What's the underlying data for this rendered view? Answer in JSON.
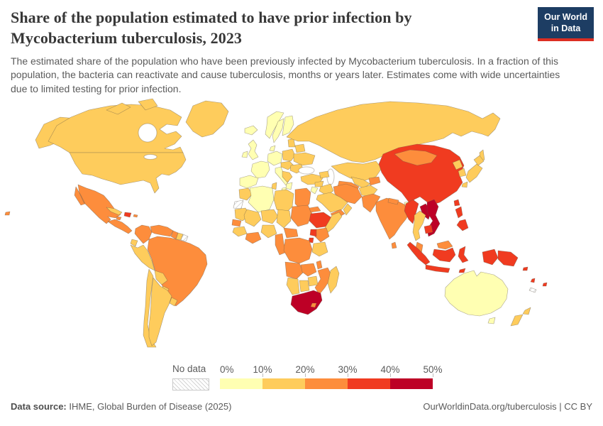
{
  "header": {
    "title": "Share of the population estimated to have prior infection by Mycobacterium tuberculosis, 2023",
    "subtitle": "The estimated share of the population who have been previously infected by Mycobacterium tuberculosis. In a fraction of this population, the bacteria can reactivate and cause tuberculosis, months or years later. Estimates come with wide uncertainties due to limited testing for prior infection.",
    "logo_line1": "Our World",
    "logo_line2": "in Data",
    "logo_bg": "#1d3d63",
    "logo_accent": "#dc2e22"
  },
  "legend": {
    "no_data_label": "No data",
    "ticks": [
      "0%",
      "10%",
      "20%",
      "30%",
      "40%",
      "50%"
    ]
  },
  "footer": {
    "source_label": "Data source:",
    "source_value": " IHME, Global Burden of Disease (2025)",
    "right_text": "OurWorldinData.org/tuberculosis | CC BY"
  },
  "chart_data": {
    "type": "choropleth_map",
    "title": "Share of the population estimated to have prior infection by Mycobacterium tuberculosis",
    "year": 2023,
    "unit": "% of population with prior M. tuberculosis infection",
    "legend_position": "bottom",
    "no_data_style": "gray diagonal hatch",
    "bins": [
      {
        "range": "0-10%",
        "color": "#FFFFB2"
      },
      {
        "range": "10-20%",
        "color": "#FECC5C"
      },
      {
        "range": "20-30%",
        "color": "#FD8D3C"
      },
      {
        "range": "30-40%",
        "color": "#F03B20"
      },
      {
        "range": "40-50%",
        "color": "#BD0026"
      }
    ],
    "regions": [
      {
        "name": "Canada",
        "value": "10-20%"
      },
      {
        "name": "United States",
        "value": "10-20%"
      },
      {
        "name": "Alaska (US)",
        "value": "10-20%"
      },
      {
        "name": "Greenland",
        "value": "10-20%"
      },
      {
        "name": "Arctic Islands (Canada)",
        "value": "10-20%"
      },
      {
        "name": "Mexico",
        "value": "20-30%"
      },
      {
        "name": "Central America",
        "value": "20-30%"
      },
      {
        "name": "Cuba",
        "value": "10-20%"
      },
      {
        "name": "Hispaniola (Haiti/Dom. Rep.)",
        "value": "30-40%"
      },
      {
        "name": "Jamaica",
        "value": "20-30%"
      },
      {
        "name": "Puerto Rico",
        "value": "20-30%"
      },
      {
        "name": "Colombia",
        "value": "20-30%"
      },
      {
        "name": "Venezuela",
        "value": "20-30%"
      },
      {
        "name": "Guyana",
        "value": "20-30%"
      },
      {
        "name": "Suriname",
        "value": "10-20%"
      },
      {
        "name": "French Guiana",
        "value": "No data"
      },
      {
        "name": "Ecuador",
        "value": "10-20%"
      },
      {
        "name": "Peru",
        "value": "10-20%"
      },
      {
        "name": "Brazil",
        "value": "20-30%"
      },
      {
        "name": "Bolivia",
        "value": "10-20%"
      },
      {
        "name": "Paraguay",
        "value": "10-20%"
      },
      {
        "name": "Chile",
        "value": "10-20%"
      },
      {
        "name": "Argentina",
        "value": "10-20%"
      },
      {
        "name": "Uruguay",
        "value": "10-20%"
      },
      {
        "name": "Iceland",
        "value": "0-10%"
      },
      {
        "name": "United Kingdom",
        "value": "0-10%"
      },
      {
        "name": "Ireland",
        "value": "0-10%"
      },
      {
        "name": "Norway",
        "value": "0-10%"
      },
      {
        "name": "Sweden",
        "value": "0-10%"
      },
      {
        "name": "Finland",
        "value": "0-10%"
      },
      {
        "name": "Denmark",
        "value": "0-10%"
      },
      {
        "name": "Germany & Central Europe",
        "value": "0-10%"
      },
      {
        "name": "France",
        "value": "0-10%"
      },
      {
        "name": "Spain & Portugal",
        "value": "0-10%"
      },
      {
        "name": "Italy",
        "value": "0-10%"
      },
      {
        "name": "Greece",
        "value": "0-10%"
      },
      {
        "name": "Poland",
        "value": "10-20%"
      },
      {
        "name": "Baltic States",
        "value": "10-20%"
      },
      {
        "name": "Belarus",
        "value": "10-20%"
      },
      {
        "name": "Ukraine",
        "value": "10-20%"
      },
      {
        "name": "Czechia/Slovakia/Hungary",
        "value": "10-20%"
      },
      {
        "name": "Romania",
        "value": "10-20%"
      },
      {
        "name": "Balkans",
        "value": "10-20%"
      },
      {
        "name": "Turkey",
        "value": "10-20%"
      },
      {
        "name": "Russia",
        "value": "10-20%"
      },
      {
        "name": "Sakhalin (Russia)",
        "value": "10-20%"
      },
      {
        "name": "Kazakhstan",
        "value": "10-20%"
      },
      {
        "name": "Uzbekistan",
        "value": "10-20%"
      },
      {
        "name": "Turkmenistan",
        "value": "20-30%"
      },
      {
        "name": "Kyrgyzstan/Tajikistan",
        "value": "20-30%"
      },
      {
        "name": "Caucasus",
        "value": "10-20%"
      },
      {
        "name": "Iran",
        "value": "20-30%"
      },
      {
        "name": "Iraq",
        "value": "10-20%"
      },
      {
        "name": "Syria",
        "value": "10-20%"
      },
      {
        "name": "Israel/Jordan",
        "value": "0-10%"
      },
      {
        "name": "Saudi Arabia",
        "value": "10-20%"
      },
      {
        "name": "Yemen",
        "value": "20-30%"
      },
      {
        "name": "Oman",
        "value": "10-20%"
      },
      {
        "name": "Afghanistan",
        "value": "10-20%"
      },
      {
        "name": "Pakistan",
        "value": "20-30%"
      },
      {
        "name": "India",
        "value": "20-30%"
      },
      {
        "name": "Nepal",
        "value": "20-30%"
      },
      {
        "name": "Sri Lanka",
        "value": "20-30%"
      },
      {
        "name": "Bangladesh",
        "value": "0-10%"
      },
      {
        "name": "China",
        "value": "30-40%"
      },
      {
        "name": "Mongolia",
        "value": "20-30%"
      },
      {
        "name": "North Korea",
        "value": "10-20%"
      },
      {
        "name": "South Korea",
        "value": "10-20%"
      },
      {
        "name": "Japan",
        "value": "10-20%"
      },
      {
        "name": "Taiwan",
        "value": "30-40%"
      },
      {
        "name": "Myanmar",
        "value": "30-40%"
      },
      {
        "name": "Thailand",
        "value": "10-20%"
      },
      {
        "name": "Laos",
        "value": "40-50%"
      },
      {
        "name": "Vietnam",
        "value": "40-50%"
      },
      {
        "name": "Cambodia",
        "value": "30-40%"
      },
      {
        "name": "Malaysia (Peninsular)",
        "value": "20-30%"
      },
      {
        "name": "Malaysia (Borneo)",
        "value": "20-30%"
      },
      {
        "name": "Indonesia (Sumatra)",
        "value": "30-40%"
      },
      {
        "name": "Indonesia (Java)",
        "value": "30-40%"
      },
      {
        "name": "Indonesia (Kalimantan)",
        "value": "30-40%"
      },
      {
        "name": "Indonesia (Sulawesi)",
        "value": "30-40%"
      },
      {
        "name": "Indonesia (Papua)",
        "value": "30-40%"
      },
      {
        "name": "Timor-Leste",
        "value": "30-40%"
      },
      {
        "name": "Philippines",
        "value": "30-40%"
      },
      {
        "name": "Papua New Guinea",
        "value": "30-40%"
      },
      {
        "name": "Solomon Islands",
        "value": "30-40%"
      },
      {
        "name": "Vanuatu",
        "value": "30-40%"
      },
      {
        "name": "Fiji",
        "value": "30-40%"
      },
      {
        "name": "New Caledonia",
        "value": "No data"
      },
      {
        "name": "Morocco",
        "value": "10-20%"
      },
      {
        "name": "Western Sahara",
        "value": "No data"
      },
      {
        "name": "Algeria",
        "value": "0-10%"
      },
      {
        "name": "Tunisia",
        "value": "10-20%"
      },
      {
        "name": "Libya",
        "value": "10-20%"
      },
      {
        "name": "Egypt",
        "value": "20-30%"
      },
      {
        "name": "Mauritania",
        "value": "10-20%"
      },
      {
        "name": "Mali",
        "value": "10-20%"
      },
      {
        "name": "Niger",
        "value": "10-20%"
      },
      {
        "name": "Chad",
        "value": "10-20%"
      },
      {
        "name": "Sudan",
        "value": "20-30%"
      },
      {
        "name": "Senegal/Gambia",
        "value": "20-30%"
      },
      {
        "name": "Guinea region",
        "value": "10-20%"
      },
      {
        "name": "Ghana/Côte d'Ivoire",
        "value": "20-30%"
      },
      {
        "name": "Nigeria",
        "value": "10-20%"
      },
      {
        "name": "Cameroon/Congo",
        "value": "20-30%"
      },
      {
        "name": "Central African Republic",
        "value": "20-30%"
      },
      {
        "name": "Eritrea",
        "value": "20-30%"
      },
      {
        "name": "Ethiopia",
        "value": "30-40%"
      },
      {
        "name": "Somalia",
        "value": "10-20%"
      },
      {
        "name": "Kenya",
        "value": "20-30%"
      },
      {
        "name": "Uganda",
        "value": "30-40%"
      },
      {
        "name": "Rwanda/Burundi",
        "value": "30-40%"
      },
      {
        "name": "DR Congo",
        "value": "20-30%"
      },
      {
        "name": "Tanzania",
        "value": "10-20%"
      },
      {
        "name": "Angola",
        "value": "20-30%"
      },
      {
        "name": "Zambia",
        "value": "20-30%"
      },
      {
        "name": "Malawi",
        "value": "20-30%"
      },
      {
        "name": "Mozambique",
        "value": "20-30%"
      },
      {
        "name": "Zimbabwe",
        "value": "10-20%"
      },
      {
        "name": "Botswana",
        "value": "10-20%"
      },
      {
        "name": "Namibia",
        "value": "10-20%"
      },
      {
        "name": "South Africa",
        "value": "40-50%"
      },
      {
        "name": "Lesotho",
        "value": "20-30%"
      },
      {
        "name": "Madagascar",
        "value": "10-20%"
      },
      {
        "name": "Australia",
        "value": "0-10%"
      },
      {
        "name": "Tasmania (Australia)",
        "value": "0-10%"
      },
      {
        "name": "New Zealand",
        "value": "10-20%"
      },
      {
        "name": "Pacific Islet (west)",
        "value": "20-30%"
      }
    ]
  }
}
